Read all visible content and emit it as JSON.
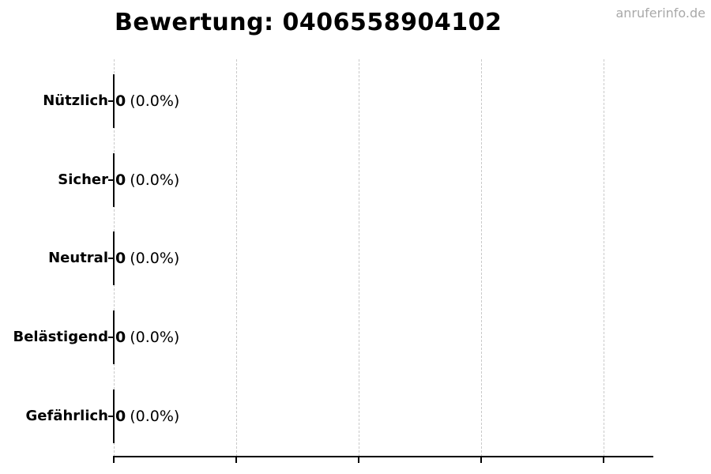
{
  "watermark": "anruferinfo.de",
  "chart_data": {
    "type": "bar",
    "orientation": "horizontal",
    "title": "Bewertung: 0406558904102",
    "categories": [
      "Nützlich",
      "Sicher",
      "Neutral",
      "Belästigend",
      "Gefährlich"
    ],
    "values": [
      0,
      0,
      0,
      0,
      0
    ],
    "bar_counts": [
      "0",
      "0",
      "0",
      "0",
      "0"
    ],
    "bar_percents": [
      "(0.0%)",
      "(0.0%)",
      "(0.0%)",
      "(0.0%)",
      "(0.0%)"
    ],
    "xlabel": "",
    "ylabel": "",
    "x_tick_labels": [],
    "grid": "vertical-dashed",
    "legend": "none",
    "colors": {
      "bar_edge": "#0a0a0a",
      "gridline": "#c9c9c9",
      "axis": "#000000",
      "text": "#000000",
      "watermark": "#a9a9a9"
    }
  }
}
